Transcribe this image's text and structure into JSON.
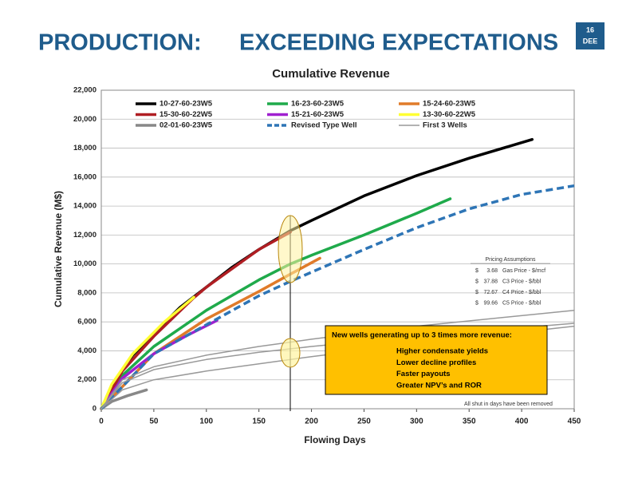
{
  "slide": {
    "title": [
      "PRODUCTION:",
      "EXCEEDING EXPECTATIONS"
    ],
    "page": "16",
    "tag": "DEE"
  },
  "chart_data": {
    "type": "line",
    "title": "Cumulative Revenue",
    "x_label": "Flowing Days",
    "y_label": "Cumulative Revenue (M$)",
    "xlim": [
      0,
      450
    ],
    "xticks": [
      0,
      50,
      100,
      150,
      200,
      250,
      300,
      350,
      400,
      450
    ],
    "ylim": [
      0,
      22000
    ],
    "yticks": [
      0,
      {
        "value": 2000,
        "label": "2,000"
      },
      {
        "value": 4000,
        "label": "4,000"
      },
      {
        "value": 6000,
        "label": "6,000"
      },
      {
        "value": 8000,
        "label": "8,000"
      },
      {
        "value": 10000,
        "label": "10,000"
      },
      {
        "value": 12000,
        "label": "12,000"
      },
      {
        "value": 14000,
        "label": "14,000"
      },
      {
        "value": 16000,
        "label": "16,000"
      },
      {
        "value": 18000,
        "label": "18,000"
      },
      {
        "value": 20000,
        "label": "20,000"
      },
      {
        "value": 22000,
        "label": "22,000"
      }
    ],
    "grid": true,
    "legend": "top",
    "series": [
      {
        "name": "10-27-60-23W5",
        "color": "#000000",
        "line_width": 3.5,
        "x": [
          0,
          10,
          20,
          30,
          50,
          75,
          100,
          125,
          150,
          180,
          200,
          250,
          300,
          350,
          410
        ],
        "values": [
          0,
          1600,
          2700,
          3700,
          5200,
          7000,
          8400,
          9800,
          11000,
          12300,
          13000,
          14700,
          16100,
          17300,
          18600
        ]
      },
      {
        "name": "16-23-60-23W5",
        "color": "#1faa4b",
        "line_width": 3.5,
        "x": [
          0,
          20,
          50,
          100,
          150,
          180,
          200,
          250,
          300,
          332
        ],
        "values": [
          0,
          2300,
          4300,
          6800,
          8900,
          10000,
          10600,
          12000,
          13500,
          14500
        ]
      },
      {
        "name": "15-24-60-23W5",
        "color": "#e07b2a",
        "line_width": 3.5,
        "x": [
          0,
          50,
          100,
          150,
          180,
          208
        ],
        "values": [
          0,
          3800,
          6200,
          8100,
          9300,
          10400
        ]
      },
      {
        "name": "15-30-60-22W5",
        "color": "#b01e23",
        "line_width": 3.5,
        "x": [
          0,
          20,
          50,
          87,
          100,
          125,
          150,
          180
        ],
        "values": [
          0,
          2600,
          5000,
          7600,
          8400,
          9700,
          11000,
          12200
        ]
      },
      {
        "name": "15-21-60-23W5",
        "color": "#a020d0",
        "line_width": 3.5,
        "x": [
          0,
          20,
          50,
          80,
          110
        ],
        "values": [
          0,
          2100,
          3800,
          5000,
          6100
        ]
      },
      {
        "name": "13-30-60-22W5",
        "color": "#ffff33",
        "line_width": 3.5,
        "x": [
          0,
          10,
          30,
          60,
          88
        ],
        "values": [
          0,
          1700,
          3800,
          6000,
          7700
        ]
      },
      {
        "name": "02-01-60-23W5",
        "color": "#888888",
        "line_width": 3.5,
        "x": [
          0,
          10,
          25,
          43
        ],
        "values": [
          0,
          500,
          900,
          1300
        ]
      },
      {
        "name": "Revised Type Well",
        "color": "#2e75b6",
        "line_width": 3.5,
        "dashed": true,
        "x": [
          0,
          50,
          100,
          150,
          180,
          250,
          300,
          350,
          400,
          450
        ],
        "values": [
          0,
          3800,
          5800,
          7800,
          8800,
          11000,
          12500,
          13800,
          14800,
          15400
        ]
      },
      {
        "name": "First 3 Wells",
        "color": "#999999",
        "line_width": 1.5,
        "lines": [
          {
            "x": [
              0,
              20,
              50,
              100,
              150,
              200,
              300,
              450
            ],
            "values": [
              0,
              2000,
              2900,
              3700,
              4300,
              4800,
              5700,
              6800
            ]
          },
          {
            "x": [
              0,
              20,
              50,
              100,
              150,
              200,
              300,
              450
            ],
            "values": [
              0,
              1800,
              2700,
              3400,
              3900,
              4300,
              5000,
              5900
            ]
          },
          {
            "x": [
              0,
              20,
              50,
              100,
              150,
              200,
              300,
              450
            ],
            "values": [
              0,
              1300,
              2000,
              2600,
              3100,
              3600,
              4500,
              5700
            ]
          }
        ]
      }
    ],
    "pricing": {
      "title": "Pricing Assumptions",
      "rows": [
        [
          "$",
          "3.68",
          "Gas Price - $/mcf"
        ],
        [
          "$",
          "37.88",
          "C3 Price - $/bbl"
        ],
        [
          "$",
          "72.67",
          "C4 Price - $/bbl"
        ],
        [
          "$",
          "99.66",
          "C5 Price - $/bbl"
        ]
      ]
    },
    "callout": {
      "title": "New wells generating  up to 3 times more revenue:",
      "items": [
        "Higher condensate yields",
        "Lower decline profiles",
        "Faster payouts",
        "Greater NPV’s and ROR"
      ]
    },
    "note": "All shut in days have been removed"
  }
}
